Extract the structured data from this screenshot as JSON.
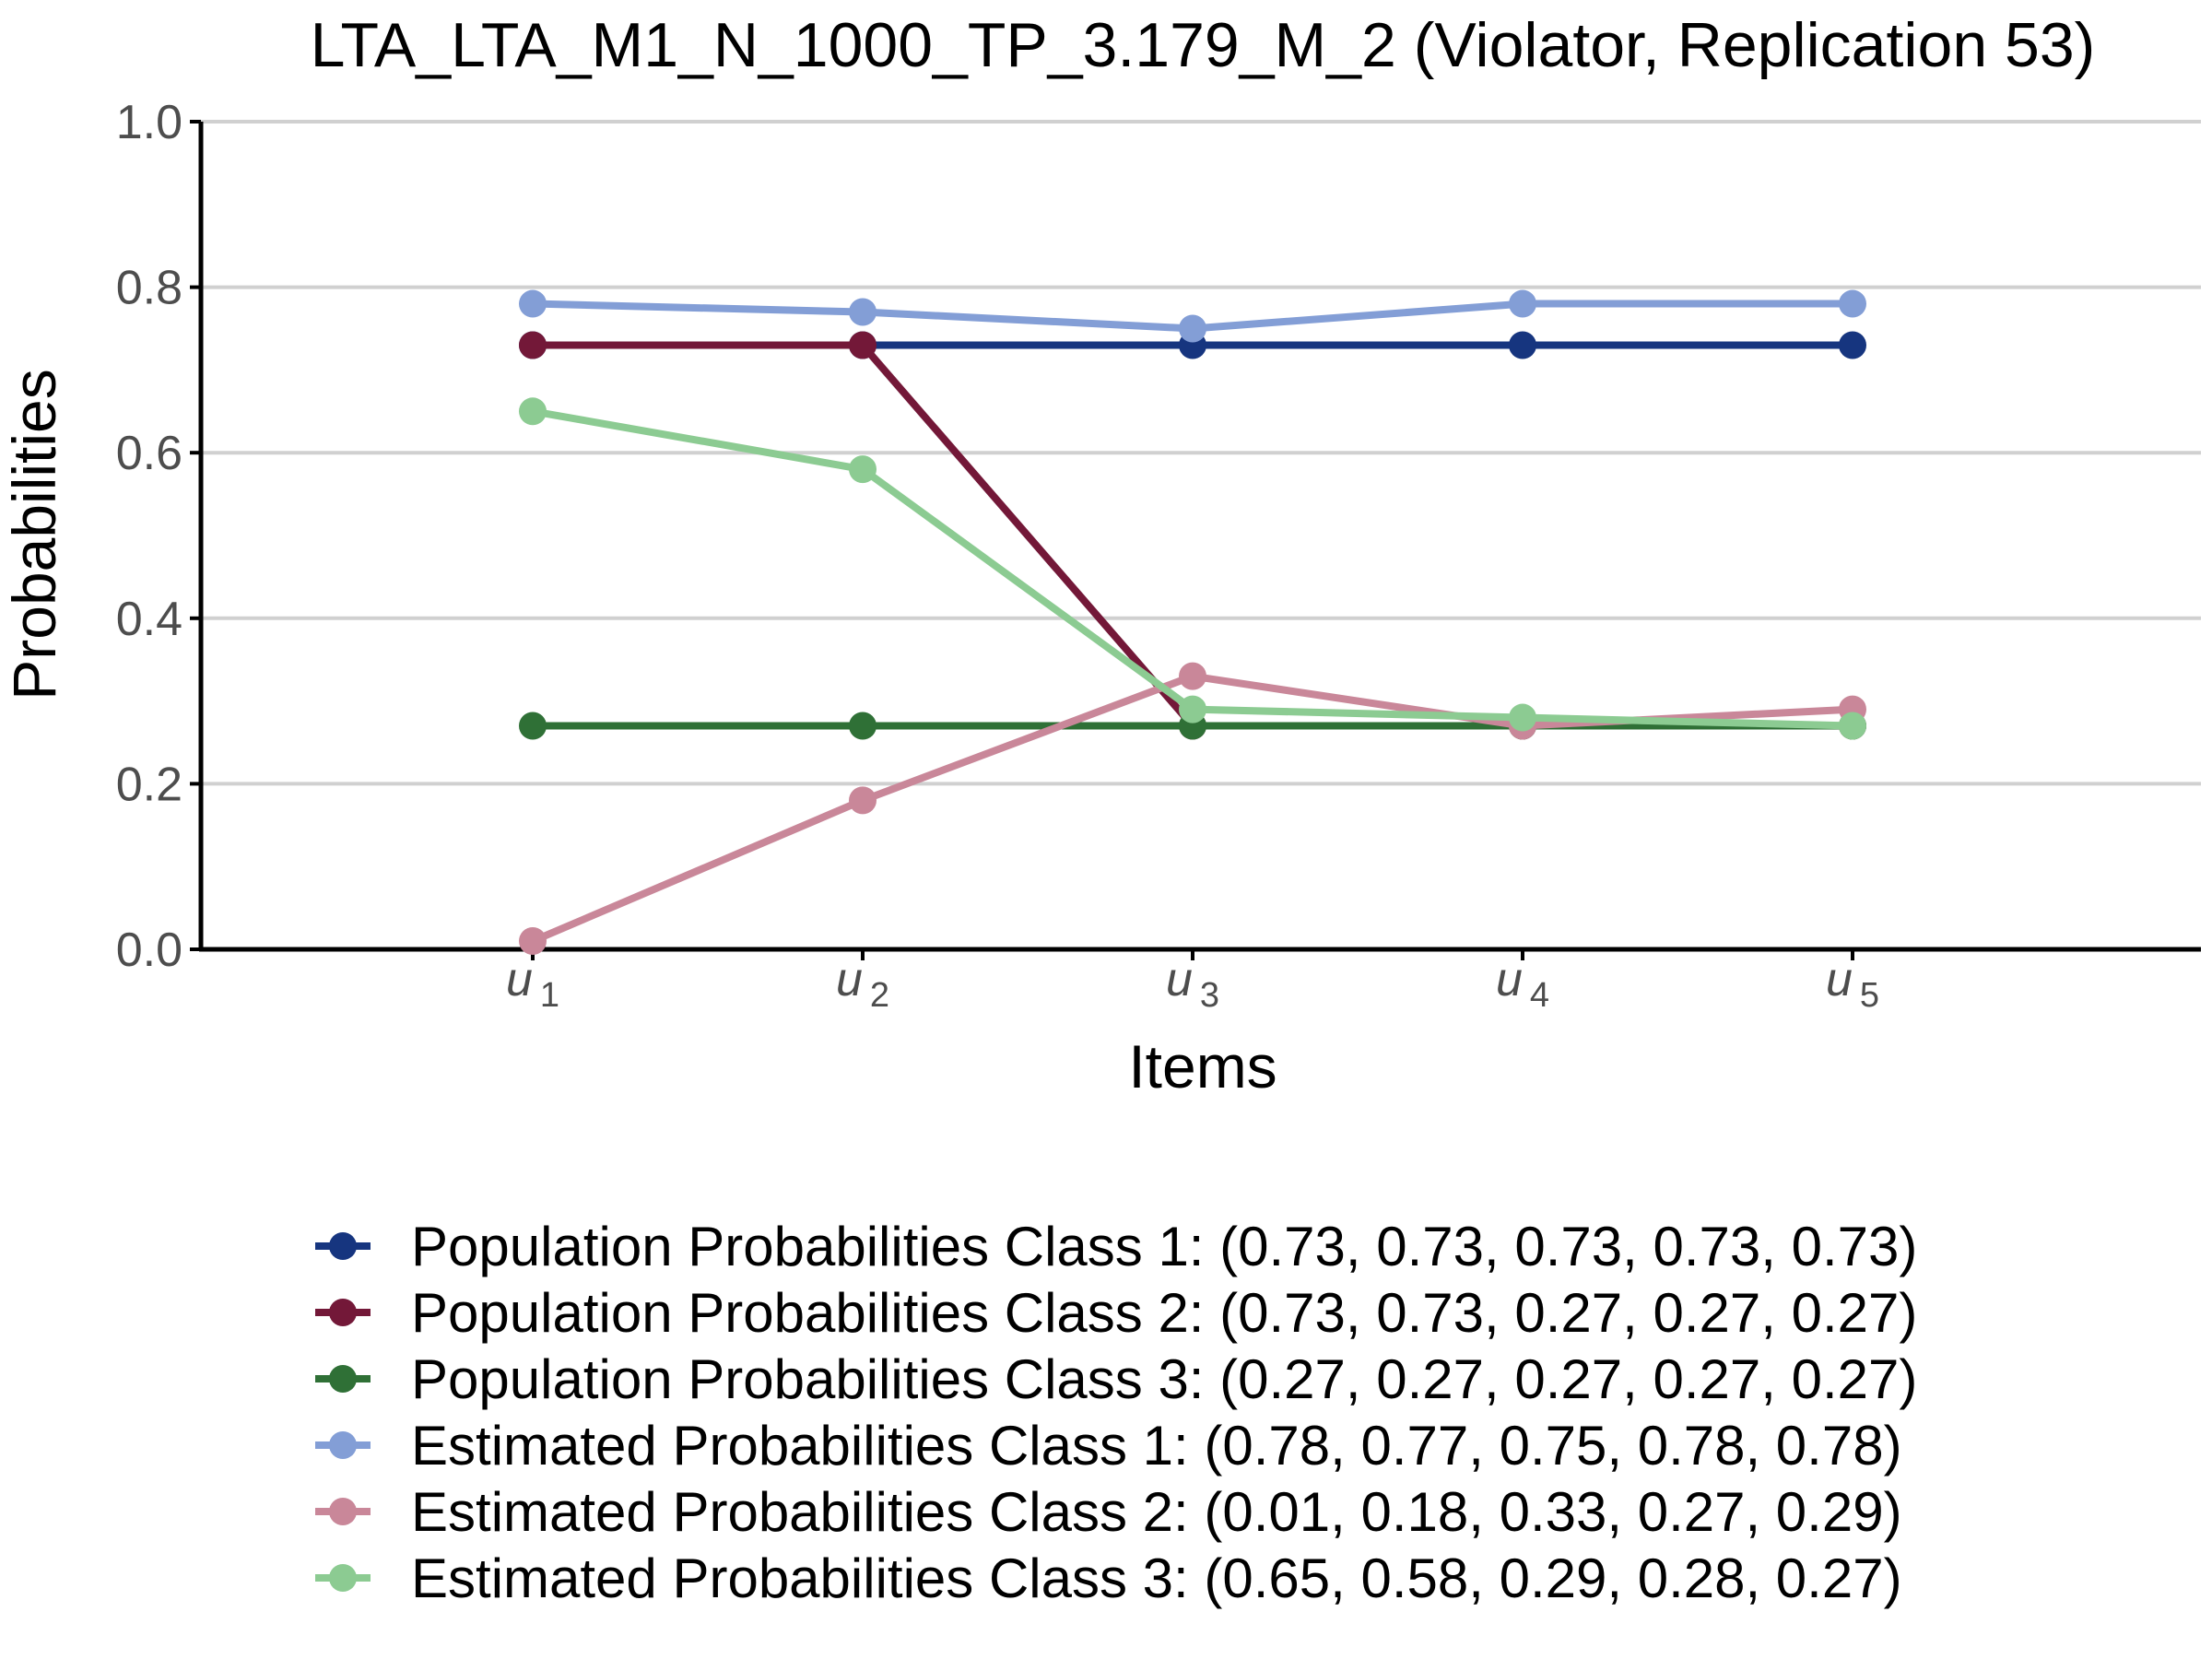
{
  "chart_data": {
    "type": "line",
    "title": "LTA_LTA_M1_N_1000_TP_3.179_M_2 (Violator, Replication 53)",
    "xlabel": "Items",
    "ylabel": "Probabilities",
    "categories": [
      {
        "symbol": "u",
        "sub": "1"
      },
      {
        "symbol": "u",
        "sub": "2"
      },
      {
        "symbol": "u",
        "sub": "3"
      },
      {
        "symbol": "u",
        "sub": "4"
      },
      {
        "symbol": "u",
        "sub": "5"
      }
    ],
    "ylim": [
      0,
      1
    ],
    "yticks": [
      "0.0",
      "0.2",
      "0.4",
      "0.6",
      "0.8",
      "1.0"
    ],
    "grid": "horizontal",
    "legend_position": "bottom",
    "series": [
      {
        "name": "Population Probabilities Class 1: (0.73, 0.73, 0.73, 0.73, 0.73)",
        "color": "#16357f",
        "values": [
          0.73,
          0.73,
          0.73,
          0.73,
          0.73
        ]
      },
      {
        "name": "Population Probabilities Class 2: (0.73, 0.73, 0.27, 0.27, 0.27)",
        "color": "#731838",
        "values": [
          0.73,
          0.73,
          0.27,
          0.27,
          0.27
        ]
      },
      {
        "name": "Population Probabilities Class 3: (0.27, 0.27, 0.27, 0.27, 0.27)",
        "color": "#2f7036",
        "values": [
          0.27,
          0.27,
          0.27,
          0.27,
          0.27
        ]
      },
      {
        "name": "Estimated Probabilities Class 1: (0.78, 0.77, 0.75, 0.78, 0.78)",
        "color": "#839ed6",
        "values": [
          0.78,
          0.77,
          0.75,
          0.78,
          0.78
        ]
      },
      {
        "name": "Estimated Probabilities Class 2: (0.01, 0.18, 0.33, 0.27, 0.29)",
        "color": "#c98799",
        "values": [
          0.01,
          0.18,
          0.33,
          0.27,
          0.29
        ]
      },
      {
        "name": "Estimated Probabilities Class 3: (0.65, 0.58, 0.29, 0.28, 0.27)",
        "color": "#8ccb92",
        "values": [
          0.65,
          0.58,
          0.29,
          0.28,
          0.27
        ]
      }
    ]
  }
}
